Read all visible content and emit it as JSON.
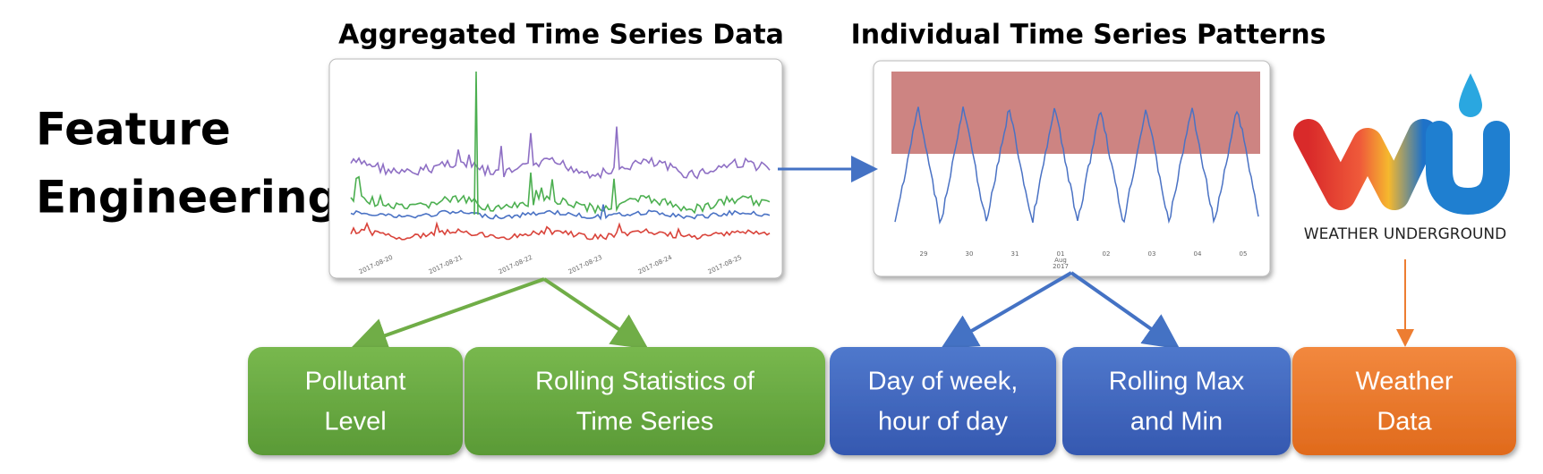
{
  "title": [
    "Feature",
    "Engineering"
  ],
  "panels": [
    {
      "title": "Aggregated Time Series Data",
      "x_labels": [
        "2017-08-20",
        "2017-08-21",
        "2017-08-22",
        "2017-08-23",
        "2017-08-24",
        "2017-08-25"
      ]
    },
    {
      "title": "Individual Time Series Patterns",
      "x_labels": [
        "29",
        "30",
        "31",
        "01",
        "02",
        "03",
        "04",
        "05"
      ],
      "month_label": [
        "Aug",
        "2017"
      ]
    }
  ],
  "logo": {
    "label": "WEATHER UNDERGROUND"
  },
  "features": [
    {
      "lines": [
        "Pollutant",
        "Level"
      ]
    },
    {
      "lines": [
        "Rolling Statistics of",
        "Time Series"
      ]
    },
    {
      "lines": [
        "Day of week,",
        "hour of day"
      ]
    },
    {
      "lines": [
        "Rolling Max",
        "and Min"
      ]
    },
    {
      "lines": [
        "Weather",
        "Data"
      ]
    }
  ]
}
